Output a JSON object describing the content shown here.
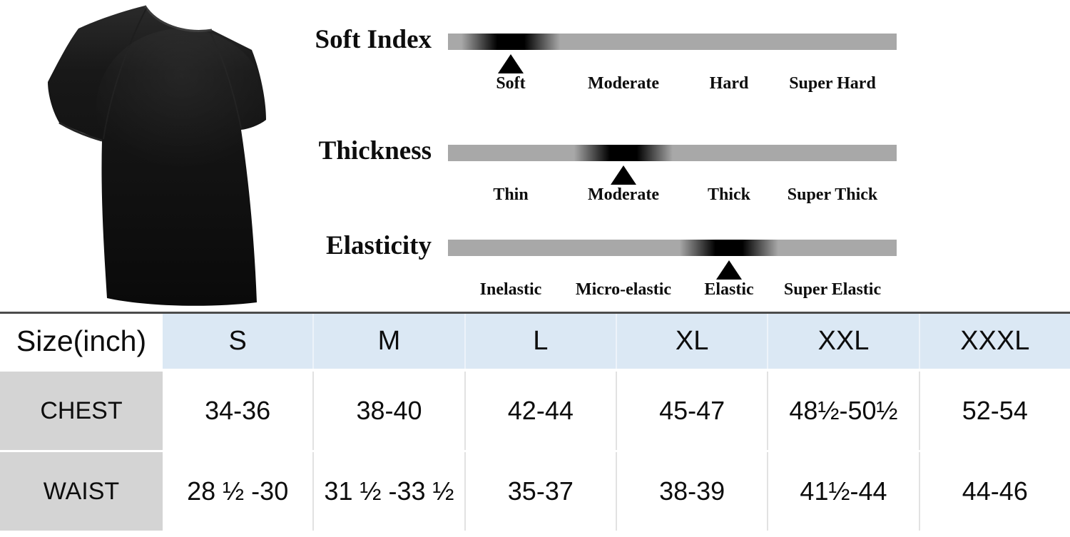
{
  "product_image": "black short-sleeve crew-neck t-shirt",
  "colors": {
    "header_blue": "#dbe8f4",
    "label_gray": "#d4d4d4",
    "bar_gray": "#a8a8a8",
    "marker_black": "#000000",
    "table_top_border": "#4c4c4c",
    "shirt_black": "#0d0d0d"
  },
  "chart_data": [
    {
      "type": "table",
      "columns": [
        "Size(inch)",
        "S",
        "M",
        "L",
        "XL",
        "XXL",
        "XXXL"
      ],
      "rows": [
        [
          "CHEST",
          "34-36",
          "38-40",
          "42-44",
          "45-47",
          "48½-50½",
          "52-54"
        ],
        [
          "WAIST",
          "28 ½ -30",
          "31 ½ -33 ½",
          "35-37",
          "38-39",
          "41½-44",
          "44-46"
        ]
      ],
      "layout": "header row blue, row labels gray, values white, dark top border"
    },
    {
      "type": "scale",
      "title": "Soft Index",
      "categories": [
        "Soft",
        "Moderate",
        "Hard",
        "Super Hard"
      ],
      "selected": "Soft",
      "selected_index": 0
    },
    {
      "type": "scale",
      "title": "Thickness",
      "categories": [
        "Thin",
        "Moderate",
        "Thick",
        "Super Thick"
      ],
      "selected": "Moderate",
      "selected_index": 1
    },
    {
      "type": "scale",
      "title": "Elasticity",
      "categories": [
        "Inelastic",
        "Micro-elastic",
        "Elastic",
        "Super Elastic"
      ],
      "selected": "Elastic",
      "selected_index": 2
    }
  ]
}
